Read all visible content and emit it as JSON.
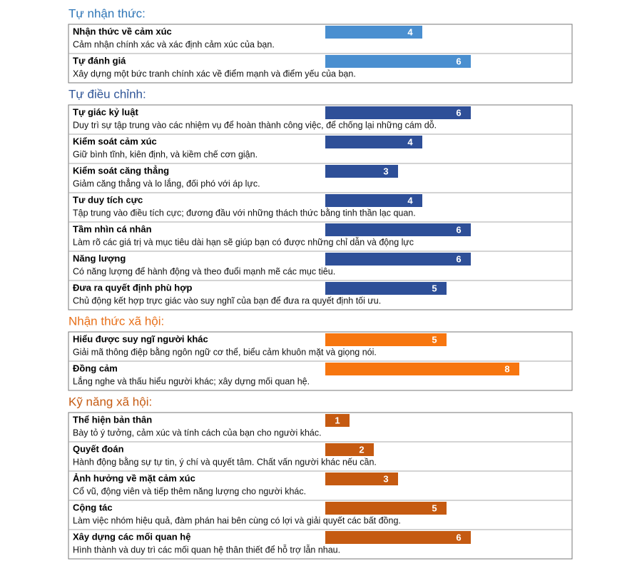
{
  "chart_data": {
    "type": "bar",
    "sections": [
      {
        "title": "Tự nhận thức:",
        "title_color": "#2e75b6",
        "color": "#4a8fd0",
        "items": [
          {
            "name": "Nhận thức về cảm xúc",
            "description": "Cảm nhận chính xác và xác định cảm xúc của bạn.",
            "value": 4
          },
          {
            "name": "Tự đánh giá",
            "description": "Xây dựng một bức tranh chính xác về điểm mạnh và điểm yếu của bạn.",
            "value": 6
          }
        ]
      },
      {
        "title": "Tự điều chỉnh:",
        "title_color": "#2f5597",
        "color": "#2e4f98",
        "items": [
          {
            "name": "Tự giác kỷ luật",
            "description": "Duy trì sự tập trung vào các nhiệm vụ để hoàn thành công việc, để chống lại những cám dỗ.",
            "value": 6
          },
          {
            "name": "Kiểm soát cảm xúc",
            "description": "Giữ bình tĩnh, kiên định, và kiềm chế cơn giận.",
            "value": 4
          },
          {
            "name": "Kiểm soát căng thẳng",
            "description": "Giảm căng thẳng và lo lắng, đối phó với áp lực.",
            "value": 3
          },
          {
            "name": "Tư duy tích cực",
            "description": "Tập trung vào điều tích cực; đương đầu với những thách thức bằng tinh thần lạc quan.",
            "value": 4
          },
          {
            "name": "Tầm nhìn cá nhân",
            "description": "Làm rõ các giá trị và mục tiêu dài hạn sẽ giúp bạn có được những chỉ dẫn và động lực",
            "value": 6
          },
          {
            "name": "Năng lượng",
            "description": "Có năng lượng để hành động và theo đuổi mạnh mẽ các mục tiêu.",
            "value": 6
          },
          {
            "name": "Đưa ra quyết định phù hợp",
            "description": "Chủ động kết hợp trực giác vào suy nghĩ của bạn để đưa ra quyết định tối ưu.",
            "value": 5
          }
        ]
      },
      {
        "title": "Nhận thức xã hội:",
        "title_color": "#e8701a",
        "color": "#f7760f",
        "items": [
          {
            "name": "Hiểu được suy ngĩ người khác",
            "description": "Giải mã thông điệp bằng ngôn ngữ cơ thể, biểu cảm khuôn mặt và giọng nói.",
            "value": 5
          },
          {
            "name": "Đồng cảm",
            "description": "Lắng nghe và thấu hiểu người khác; xây dựng mối quan hệ.",
            "value": 8
          }
        ]
      },
      {
        "title": "Kỹ năng xã hội:",
        "title_color": "#c55a11",
        "color": "#c55a11",
        "items": [
          {
            "name": "Thể hiện bản thân",
            "description": "Bày tỏ ý tưởng, cảm xúc và tính cách của bạn cho người khác.",
            "value": 1
          },
          {
            "name": "Quyết đoán",
            "description": "Hành động bằng sự tự tin, ý chí và quyết tâm. Chất vấn người khác nếu cần.",
            "value": 2
          },
          {
            "name": "Ảnh hưởng về mặt cảm xúc",
            "description": "Cổ vũ, động viên và tiếp thêm năng lượng cho người khác.",
            "value": 3
          },
          {
            "name": "Cộng tác",
            "description": "Làm việc nhóm hiệu quả, đàm phán hai bên cùng có lợi và giải quyết các bất đồng.",
            "value": 5
          },
          {
            "name": "Xây dựng các mối quan hệ",
            "description": "Hình thành và duy trì các mối quan hệ thân thiết để hỗ trợ lẫn nhau.",
            "value": 6
          }
        ]
      }
    ]
  }
}
